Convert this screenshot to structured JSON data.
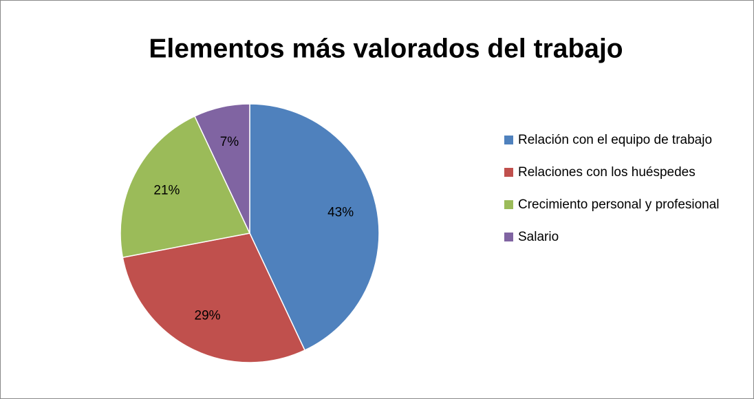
{
  "chart_data": {
    "type": "pie",
    "title": "Elementos más valorados del trabajo",
    "categories": [
      "Relación con el equipo de trabajo",
      "Relaciones con los huéspedes",
      "Crecimiento personal y profesional",
      "Salario"
    ],
    "values": [
      43,
      29,
      21,
      7
    ],
    "value_labels": [
      "43%",
      "29%",
      "21%",
      "7%"
    ],
    "colors": [
      "#4f81bd",
      "#c0504d",
      "#9bbb59",
      "#8064a2"
    ],
    "legend": "right"
  }
}
